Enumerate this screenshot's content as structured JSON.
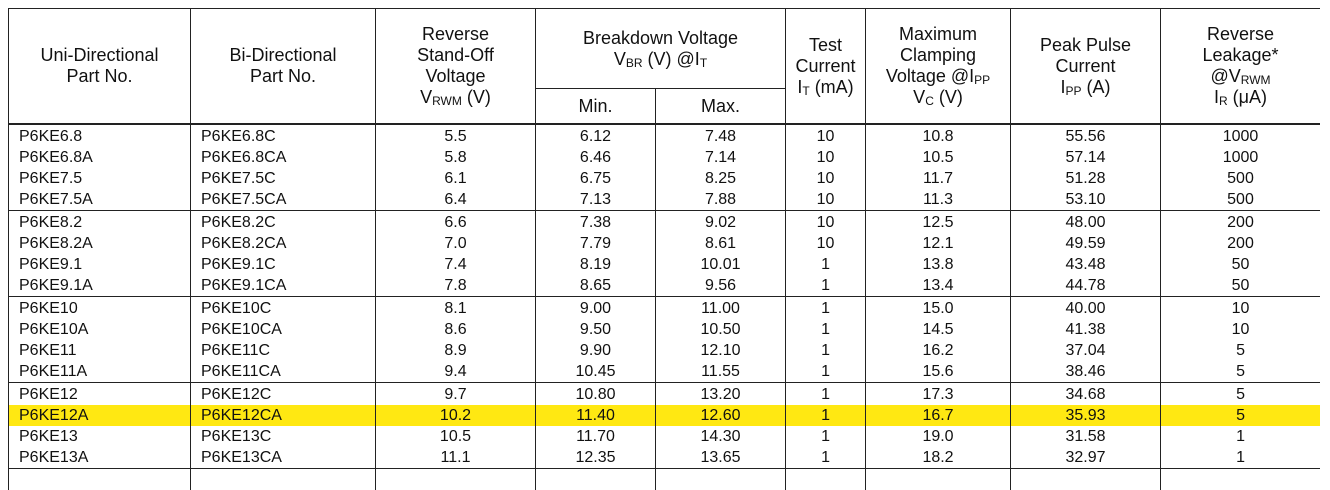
{
  "table": {
    "header": {
      "cells": [
        {
          "lines": [
            [
              "Uni-Directional"
            ],
            [
              "Part No."
            ]
          ]
        },
        {
          "lines": [
            [
              "Bi-Directional"
            ],
            [
              "Part No."
            ]
          ]
        },
        {
          "lines": [
            [
              "Reverse"
            ],
            [
              "Stand-Off"
            ],
            [
              "Voltage"
            ],
            [
              "V",
              {
                "sub": "RWM"
              },
              " (V)"
            ]
          ]
        },
        {
          "lines": [
            [
              "Breakdown Voltage"
            ],
            [
              "V",
              {
                "sub": "BR"
              },
              " (V) @I",
              {
                "sub": "T"
              }
            ]
          ],
          "subcolumns": [
            "Min.",
            "Max."
          ]
        },
        {
          "lines": [
            [
              "Test"
            ],
            [
              "Current"
            ],
            [
              "I",
              {
                "sub": "T"
              },
              " (mA)"
            ]
          ]
        },
        {
          "lines": [
            [
              "Maximum"
            ],
            [
              "Clamping"
            ],
            [
              "Voltage @I",
              {
                "sub": "PP"
              }
            ],
            [
              "V",
              {
                "sub": "C"
              },
              " (V)"
            ]
          ]
        },
        {
          "lines": [
            [
              "Peak Pulse"
            ],
            [
              "Current"
            ],
            [
              "I",
              {
                "sub": "PP"
              },
              " (A)"
            ]
          ]
        },
        {
          "lines": [
            [
              "Reverse"
            ],
            [
              "Leakage*"
            ],
            [
              "@V",
              {
                "sub": "RWM"
              }
            ],
            [
              "I",
              {
                "sub": "R"
              },
              " (μA)"
            ]
          ]
        }
      ]
    },
    "groups": [
      [
        [
          "P6KE6.8",
          "P6KE6.8C",
          "5.5",
          "6.12",
          "7.48",
          "10",
          "10.8",
          "55.56",
          "1000"
        ],
        [
          "P6KE6.8A",
          "P6KE6.8CA",
          "5.8",
          "6.46",
          "7.14",
          "10",
          "10.5",
          "57.14",
          "1000"
        ],
        [
          "P6KE7.5",
          "P6KE7.5C",
          "6.1",
          "6.75",
          "8.25",
          "10",
          "11.7",
          "51.28",
          "500"
        ],
        [
          "P6KE7.5A",
          "P6KE7.5CA",
          "6.4",
          "7.13",
          "7.88",
          "10",
          "11.3",
          "53.10",
          "500"
        ]
      ],
      [
        [
          "P6KE8.2",
          "P6KE8.2C",
          "6.6",
          "7.38",
          "9.02",
          "10",
          "12.5",
          "48.00",
          "200"
        ],
        [
          "P6KE8.2A",
          "P6KE8.2CA",
          "7.0",
          "7.79",
          "8.61",
          "10",
          "12.1",
          "49.59",
          "200"
        ],
        [
          "P6KE9.1",
          "P6KE9.1C",
          "7.4",
          "8.19",
          "10.01",
          "1",
          "13.8",
          "43.48",
          "50"
        ],
        [
          "P6KE9.1A",
          "P6KE9.1CA",
          "7.8",
          "8.65",
          "9.56",
          "1",
          "13.4",
          "44.78",
          "50"
        ]
      ],
      [
        [
          "P6KE10",
          "P6KE10C",
          "8.1",
          "9.00",
          "11.00",
          "1",
          "15.0",
          "40.00",
          "10"
        ],
        [
          "P6KE10A",
          "P6KE10CA",
          "8.6",
          "9.50",
          "10.50",
          "1",
          "14.5",
          "41.38",
          "10"
        ],
        [
          "P6KE11",
          "P6KE11C",
          "8.9",
          "9.90",
          "12.10",
          "1",
          "16.2",
          "37.04",
          "5"
        ],
        [
          "P6KE11A",
          "P6KE11CA",
          "9.4",
          "10.45",
          "11.55",
          "1",
          "15.6",
          "38.46",
          "5"
        ]
      ],
      [
        [
          "P6KE12",
          "P6KE12C",
          "9.7",
          "10.80",
          "13.20",
          "1",
          "17.3",
          "34.68",
          "5"
        ],
        [
          "P6KE12A",
          "P6KE12CA",
          "10.2",
          "11.40",
          "12.60",
          "1",
          "16.7",
          "35.93",
          "5"
        ],
        [
          "P6KE13",
          "P6KE13C",
          "10.5",
          "11.70",
          "14.30",
          "1",
          "19.0",
          "31.58",
          "1"
        ],
        [
          "P6KE13A",
          "P6KE13CA",
          "11.1",
          "12.35",
          "13.65",
          "1",
          "18.2",
          "32.97",
          "1"
        ]
      ]
    ],
    "highlighted_row": {
      "group": 3,
      "row": 1,
      "color": "#ffe812"
    }
  }
}
